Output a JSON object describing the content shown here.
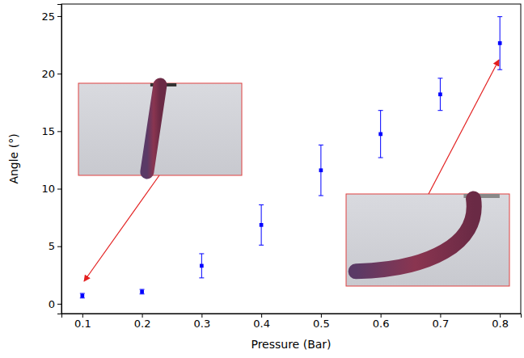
{
  "chart_data": {
    "type": "scatter",
    "x_label": "Pressure (Bar)",
    "y_label": "Angle (°)",
    "x": [
      0.1,
      0.2,
      0.3,
      0.4,
      0.5,
      0.6,
      0.7,
      0.8
    ],
    "values": [
      0.7,
      1.05,
      3.3,
      6.85,
      11.6,
      14.75,
      18.2,
      22.65
    ],
    "errors": [
      0.2,
      0.2,
      1.05,
      1.75,
      2.2,
      2.05,
      1.4,
      2.3
    ],
    "color": "#0000ff",
    "marker": "square",
    "xlim": [
      0.065,
      0.835
    ],
    "xticks": [
      0.1,
      0.2,
      0.3,
      0.4,
      0.5,
      0.6,
      0.7,
      0.8
    ],
    "ylim": [
      -0.85,
      26.05
    ],
    "yticks": [
      0,
      5,
      10,
      15,
      20,
      25
    ],
    "grid": false
  }
}
